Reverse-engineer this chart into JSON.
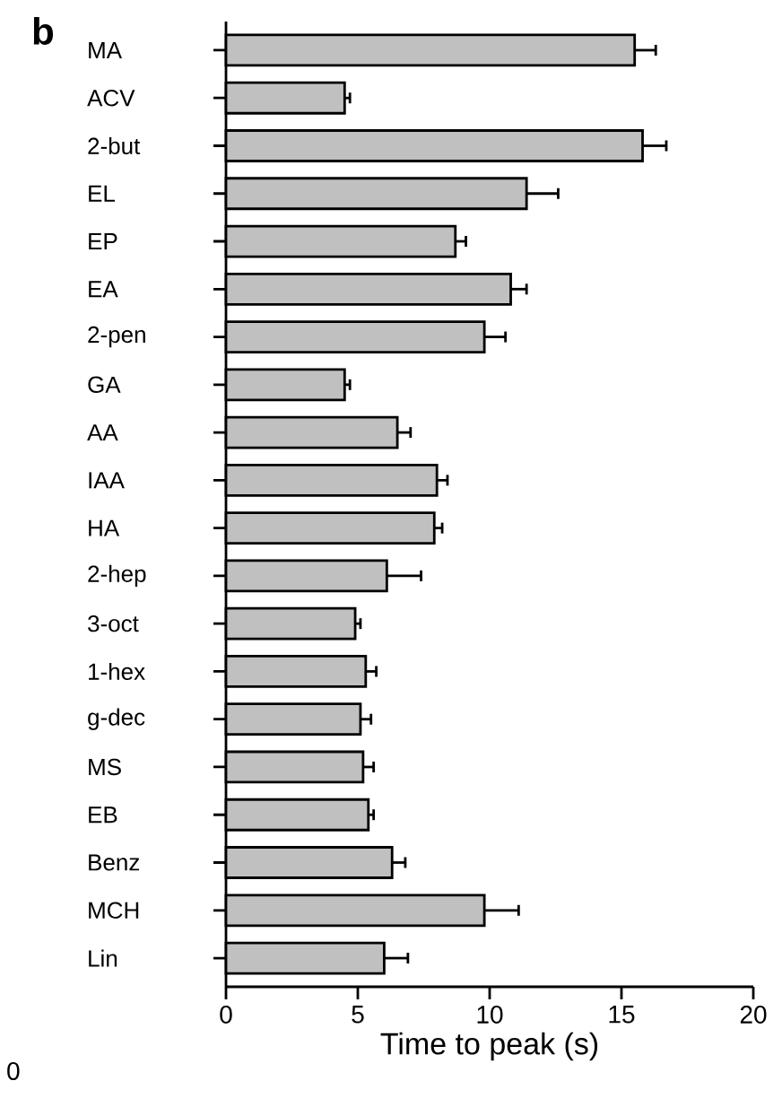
{
  "chart_data": {
    "type": "bar",
    "orientation": "horizontal",
    "title": "b",
    "xlabel": "Time to peak (s)",
    "categories": [
      "MA",
      "ACV",
      "2-but",
      "EL",
      "EP",
      "EA",
      "2-pen",
      "GA",
      "AA",
      "IAA",
      "HA",
      "2-hep",
      "3-oct",
      "1-hex",
      "g-dec",
      "MS",
      "EB",
      "Benz",
      "MCH",
      "Lin"
    ],
    "values": [
      15.5,
      4.5,
      15.8,
      11.4,
      8.7,
      10.8,
      9.8,
      4.5,
      6.5,
      8.0,
      7.9,
      6.1,
      4.9,
      5.3,
      5.1,
      5.2,
      5.4,
      6.3,
      9.8,
      6.0
    ],
    "errors": [
      0.8,
      0.2,
      0.9,
      1.2,
      0.4,
      0.6,
      0.8,
      0.2,
      0.5,
      0.4,
      0.3,
      1.3,
      0.2,
      0.4,
      0.4,
      0.4,
      0.2,
      0.5,
      1.3,
      0.9
    ],
    "color": "#c0c0c0",
    "xlim": [
      0,
      20
    ],
    "xticks": [
      0,
      5,
      10,
      15,
      20
    ],
    "annotations": [
      "0"
    ]
  }
}
